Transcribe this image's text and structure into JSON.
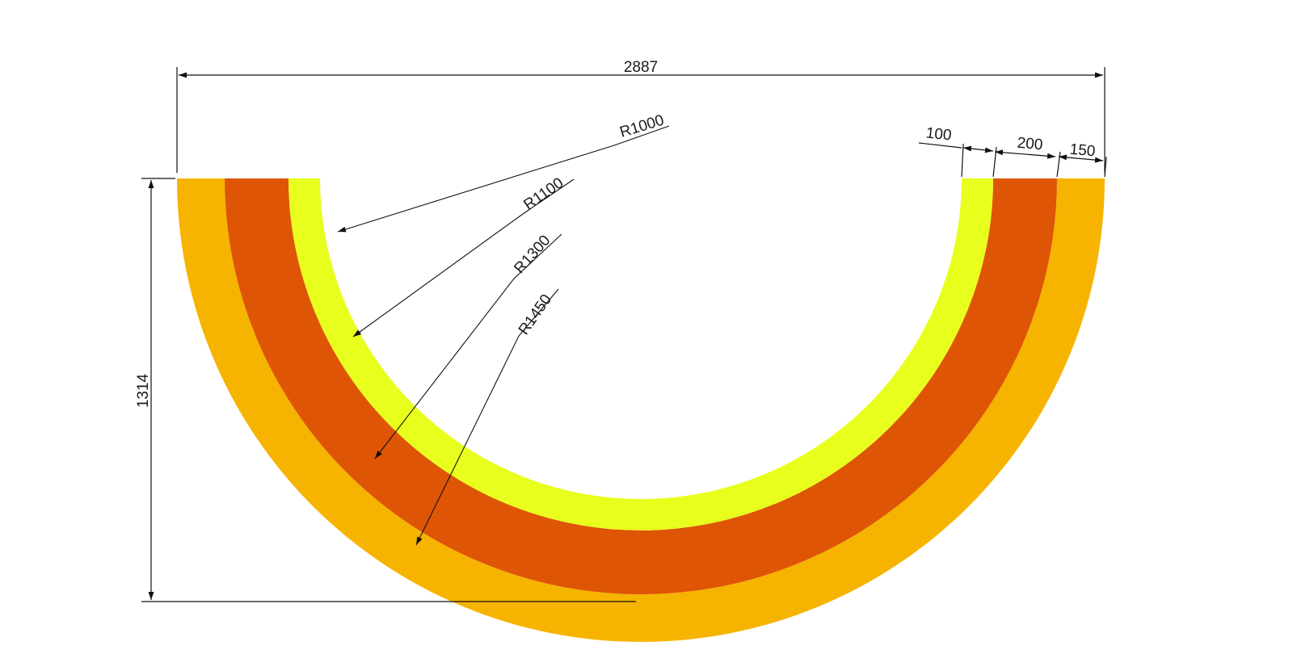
{
  "drawing": {
    "colors": {
      "outer_band": "#F6B400",
      "middle_band": "#DF5506",
      "inner_band": "#E8FF1E",
      "dimension_line": "#111111"
    },
    "bands": [
      {
        "name": "outer",
        "radius_outer": 1450,
        "radius_inner": 1300
      },
      {
        "name": "middle",
        "radius_outer": 1300,
        "radius_inner": 1100
      },
      {
        "name": "inner",
        "radius_outer": 1100,
        "radius_inner": 1000
      }
    ],
    "dimensions": {
      "overall_width": "2887",
      "overall_height": "1314",
      "band_width_inner": "100",
      "band_width_middle": "200",
      "band_width_outer": "150"
    },
    "radius_labels": {
      "r1000": "R1000",
      "r1100": "R1100",
      "r1300": "R1300",
      "r1450": "R1450"
    }
  }
}
